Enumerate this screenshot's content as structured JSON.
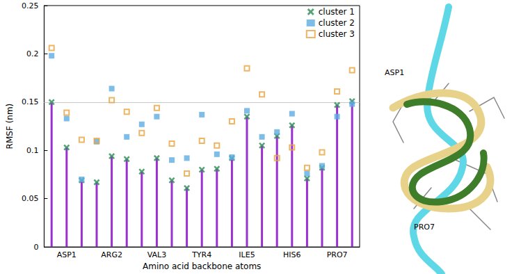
{
  "chart_data": {
    "type": "scatter",
    "x_label": "Amino acid backbone atoms",
    "y_label": "RMSF (nm)",
    "categories": [
      null,
      "ASP1",
      null,
      null,
      "ARG2",
      null,
      null,
      "VAL3",
      null,
      null,
      "TYR4",
      null,
      null,
      "ILE5",
      null,
      null,
      "HIS6",
      null,
      null,
      "PRO7",
      null
    ],
    "series": [
      {
        "name": "cluster 1",
        "color": "#2e8b57",
        "marker": "x",
        "line_style": "stem",
        "values": [
          0.15,
          0.103,
          0.069,
          0.067,
          0.094,
          0.091,
          0.078,
          0.092,
          0.069,
          0.061,
          0.08,
          0.081,
          0.092,
          0.135,
          0.105,
          0.115,
          0.126,
          0.071,
          0.082,
          0.147,
          0.151
        ]
      },
      {
        "name": "cluster 2",
        "color": "#5dade2",
        "marker": "square",
        "values": [
          0.198,
          0.133,
          0.07,
          0.109,
          0.164,
          0.114,
          0.127,
          0.135,
          0.09,
          0.092,
          0.137,
          0.096,
          0.093,
          0.141,
          0.114,
          0.119,
          0.138,
          0.076,
          0.084,
          0.135,
          0.148
        ]
      },
      {
        "name": "cluster 3",
        "color": "#e8a33d",
        "marker": "open_square",
        "values": [
          0.206,
          0.139,
          0.111,
          0.11,
          0.152,
          0.14,
          0.118,
          0.144,
          0.107,
          0.076,
          0.11,
          0.105,
          0.13,
          0.185,
          0.158,
          0.092,
          0.103,
          0.082,
          0.098,
          0.161,
          0.183
        ]
      }
    ],
    "reference_lines": [
      0.15
    ],
    "ylim": [
      0,
      0.25
    ],
    "yticks": [
      0,
      0.05,
      0.1,
      0.15,
      0.2,
      0.25
    ],
    "grid": false,
    "legend": "upper right",
    "annotations": [
      {
        "text": "ASP1"
      },
      {
        "text": "PRO7"
      }
    ]
  }
}
